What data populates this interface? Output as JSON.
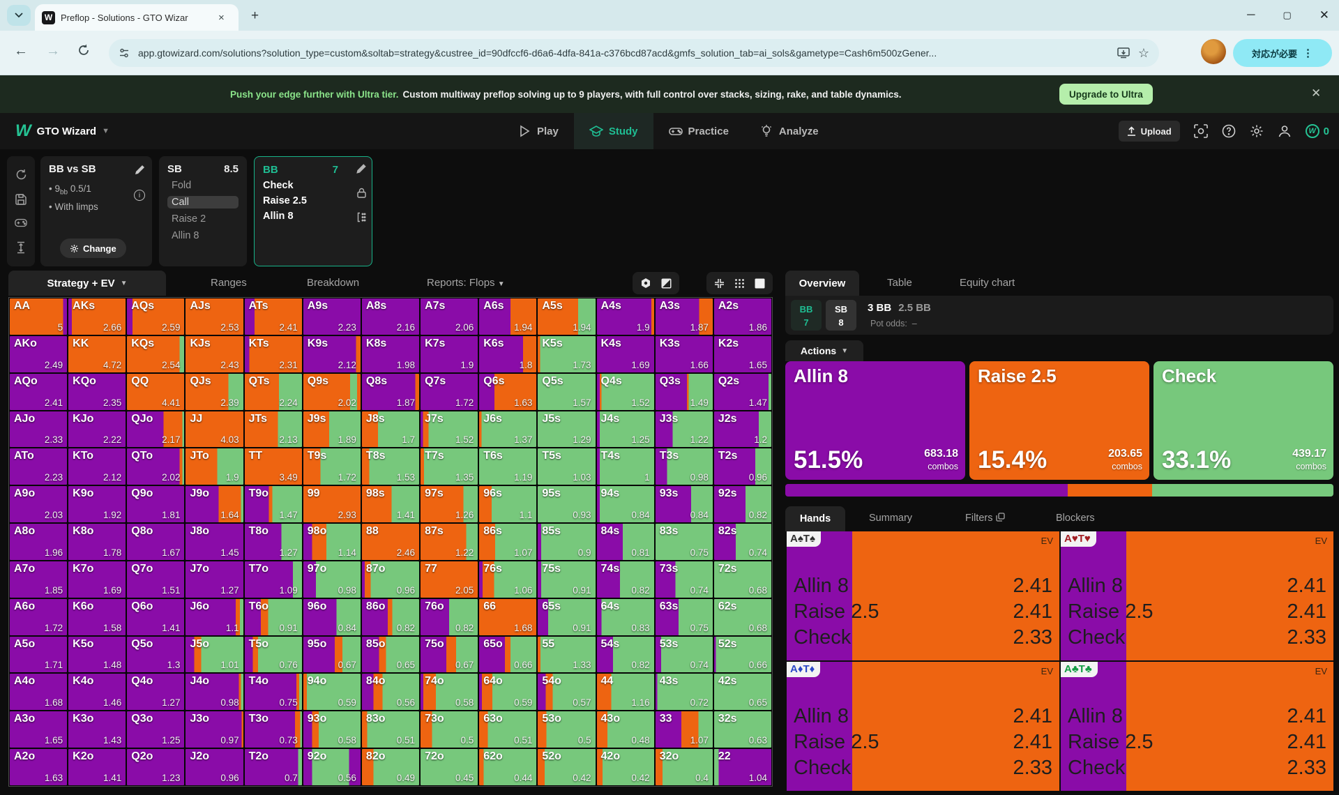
{
  "colors": {
    "p": "#8a0ca8",
    "o": "#ee6411",
    "g": "#77c87c",
    "teal": "#1fbe93"
  },
  "browser": {
    "tab_title": "Preflop - Solutions - GTO Wizar",
    "favicon_letter": "W",
    "url": "app.gtowizard.com/solutions?solution_type=custom&soltab=strategy&custree_id=90dfccf6-d6a6-4dfa-841a-c376bcd87acd&gmfs_solution_tab=ai_sols&gametype=Cash6m500zGener...",
    "alert_pill": "対応が必要"
  },
  "banner": {
    "highlight": "Push your edge further with Ultra tier.",
    "text": "Custom multiway preflop solving up to 9 players, with full control over stacks, sizing, rake, and table dynamics.",
    "button": "Upgrade to Ultra"
  },
  "navbar": {
    "logo_letter": "W",
    "brand": "GTO Wizard",
    "items": [
      "Play",
      "Study",
      "Practice",
      "Analyze"
    ],
    "upload": "Upload",
    "coins": "0"
  },
  "config": {
    "title": "BB vs SB",
    "bullet1_pre": "9",
    "bullet1_sub": "bb",
    "bullet1_post": " 0.5/1",
    "bullet2": "With limps",
    "change": "Change",
    "sb_panel": {
      "name": "SB",
      "stack": "8.5",
      "options": [
        "Fold",
        "Call",
        "Raise 2",
        "Allin 8"
      ],
      "selected": "Call"
    },
    "bb_panel": {
      "name": "BB",
      "stack": "7",
      "options": [
        "Check",
        "Raise 2.5",
        "Allin 8"
      ]
    }
  },
  "matrix_toolbar": {
    "tabs": [
      "Strategy + EV",
      "Ranges",
      "Breakdown",
      "Reports: Flops"
    ]
  },
  "right": {
    "tabs": [
      "Overview",
      "Table",
      "Equity chart"
    ],
    "players": [
      {
        "name": "BB",
        "stack": "7"
      },
      {
        "name": "SB",
        "stack": "8"
      }
    ],
    "pot": "3 BB",
    "bet": "2.5 BB",
    "pot_odds_label": "Pot odds:",
    "pot_odds": "–",
    "actions_label": "Actions",
    "combos_label": "combos",
    "actions": [
      {
        "name": "Allin 8",
        "pct": "51.5%",
        "combos": "683.18",
        "color": "p"
      },
      {
        "name": "Raise 2.5",
        "pct": "15.4%",
        "combos": "203.65",
        "color": "o"
      },
      {
        "name": "Check",
        "pct": "33.1%",
        "combos": "439.17",
        "color": "g"
      }
    ],
    "strategy_bar": [
      {
        "color": "p",
        "pct": 51.5
      },
      {
        "color": "o",
        "pct": 15.4
      },
      {
        "color": "g",
        "pct": 33.1
      }
    ],
    "hands_tabs": [
      "Hands",
      "Summary",
      "Filters",
      "Blockers"
    ],
    "ev_label": "EV",
    "hand_cards": [
      {
        "label": "A♠T♠",
        "suit_color": "#2f2f2f",
        "strip": 0.24,
        "rows": [
          [
            "Allin 8",
            "2.41"
          ],
          [
            "Raise 2.5",
            "2.41"
          ],
          [
            "Check",
            "2.33"
          ]
        ]
      },
      {
        "label": "A♥T♥",
        "suit_color": "#a21d22",
        "strip": 0.24,
        "rows": [
          [
            "Allin 8",
            "2.41"
          ],
          [
            "Raise 2.5",
            "2.41"
          ],
          [
            "Check",
            "2.33"
          ]
        ]
      },
      {
        "label": "A♦T♦",
        "suit_color": "#2b47c6",
        "strip": 0.24,
        "rows": [
          [
            "Allin 8",
            "2.41"
          ],
          [
            "Raise 2.5",
            "2.41"
          ],
          [
            "Check",
            "2.33"
          ]
        ]
      },
      {
        "label": "A♣T♣",
        "suit_color": "#129b43",
        "strip": 0.24,
        "rows": [
          [
            "Allin 8",
            "2.41"
          ],
          [
            "Raise 2.5",
            "2.41"
          ],
          [
            "Check",
            "2.33"
          ]
        ]
      }
    ]
  },
  "matrix": {
    "cells": [
      [
        "AA",
        "5",
        "o:.93,p:.07"
      ],
      [
        "AKs",
        "2.66",
        "p:.06,o:.94"
      ],
      [
        "AQs",
        "2.59",
        "p:.1,o:.9"
      ],
      [
        "AJs",
        "2.53",
        "o:1"
      ],
      [
        "ATs",
        "2.41",
        "p:.17,o:.83"
      ],
      [
        "A9s",
        "2.23",
        "p:1"
      ],
      [
        "A8s",
        "2.16",
        "p:1"
      ],
      [
        "A7s",
        "2.06",
        "p:1"
      ],
      [
        "A6s",
        "1.94",
        "p:.55,o:.45"
      ],
      [
        "A5s",
        "1.94",
        "o:.7,g:.3"
      ],
      [
        "A4s",
        "1.9",
        "p:.95,o:.05"
      ],
      [
        "A3s",
        "1.87",
        "p:.76,o:.24"
      ],
      [
        "A2s",
        "1.86",
        "p:1"
      ],
      [
        "AKo",
        "2.49",
        "p:1"
      ],
      [
        "KK",
        "4.72",
        "o:1"
      ],
      [
        "KQs",
        "2.54",
        "o:.92,g:.08"
      ],
      [
        "KJs",
        "2.43",
        "o:1"
      ],
      [
        "KTs",
        "2.31",
        "p:.08,o:.92"
      ],
      [
        "K9s",
        "2.12",
        "p:.92,o:.08"
      ],
      [
        "K8s",
        "1.98",
        "p:1"
      ],
      [
        "K7s",
        "1.9",
        "p:1"
      ],
      [
        "K6s",
        "1.8",
        "p:.77,o:.23"
      ],
      [
        "K5s",
        "1.73",
        "o:.04,g:.96"
      ],
      [
        "K4s",
        "1.69",
        "p:1"
      ],
      [
        "K3s",
        "1.66",
        "p:1"
      ],
      [
        "K2s",
        "1.65",
        "p:1"
      ],
      [
        "AQo",
        "2.41",
        "p:1"
      ],
      [
        "KQo",
        "2.35",
        "p:1"
      ],
      [
        "QQ",
        "4.41",
        "o:1"
      ],
      [
        "QJs",
        "2.39",
        "o:.74,g:.26"
      ],
      [
        "QTs",
        "2.24",
        "o:.6,g:.4"
      ],
      [
        "Q9s",
        "2.02",
        "o:.82,g:.12,o:.06"
      ],
      [
        "Q8s",
        "1.87",
        "p:.93,o:.07"
      ],
      [
        "Q7s",
        "1.72",
        "p:1"
      ],
      [
        "Q6s",
        "1.63",
        "p:.27,o:.73"
      ],
      [
        "Q5s",
        "1.57",
        "g:1"
      ],
      [
        "Q4s",
        "1.52",
        "p:.05,o:.03,g:.92"
      ],
      [
        "Q3s",
        "1.49",
        "p:.55,o:.03,g:.42"
      ],
      [
        "Q2s",
        "1.47",
        "p:.95,g:.05"
      ],
      [
        "AJo",
        "2.33",
        "p:1"
      ],
      [
        "KJo",
        "2.22",
        "p:1"
      ],
      [
        "QJo",
        "2.17",
        "p:.64,o:.33,g:.03"
      ],
      [
        "JJ",
        "4.03",
        "o:1"
      ],
      [
        "JTs",
        "2.13",
        "o:.58,g:.42"
      ],
      [
        "J9s",
        "1.89",
        "o:.45,g:.55"
      ],
      [
        "J8s",
        "1.7",
        "o:.28,g:.72"
      ],
      [
        "J7s",
        "1.52",
        "p:.04,o:.1,g:.86"
      ],
      [
        "J6s",
        "1.37",
        "o:.04,g:.96"
      ],
      [
        "J5s",
        "1.29",
        "g:1"
      ],
      [
        "J4s",
        "1.25",
        "p:.05,g:.95"
      ],
      [
        "J3s",
        "1.22",
        "p:.3,g:.7"
      ],
      [
        "J2s",
        "1.2",
        "p:.78,g:.22"
      ],
      [
        "ATo",
        "2.23",
        "p:1"
      ],
      [
        "KTo",
        "2.12",
        "p:1"
      ],
      [
        "QTo",
        "2.02",
        "p:.92,o:.05,g:.03"
      ],
      [
        "JTo",
        "1.9",
        "o:.55,g:.45"
      ],
      [
        "TT",
        "3.49",
        "o:1"
      ],
      [
        "T9s",
        "1.72",
        "o:.3,g:.7"
      ],
      [
        "T8s",
        "1.53",
        "o:.13,g:.87"
      ],
      [
        "T7s",
        "1.35",
        "o:.06,g:.94"
      ],
      [
        "T6s",
        "1.19",
        "g:1"
      ],
      [
        "T5s",
        "1.03",
        "g:1"
      ],
      [
        "T4s",
        "1",
        "p:.05,g:.95"
      ],
      [
        "T3s",
        "0.98",
        "p:.2,g:.8"
      ],
      [
        "T2s",
        "0.96",
        "p:.72,g:.28"
      ],
      [
        "A9o",
        "2.03",
        "p:1"
      ],
      [
        "K9o",
        "1.92",
        "p:1"
      ],
      [
        "Q9o",
        "1.81",
        "p:1"
      ],
      [
        "J9o",
        "1.64",
        "p:.57,o:.39,g:.04"
      ],
      [
        "T9o",
        "1.47",
        "p:.42,o:.06,g:.52"
      ],
      [
        "99",
        "2.93",
        "o:1"
      ],
      [
        "98s",
        "1.41",
        "o:.52,g:.48"
      ],
      [
        "97s",
        "1.26",
        "o:.75,g:.25"
      ],
      [
        "96s",
        "1.1",
        "o:.22,g:.78"
      ],
      [
        "95s",
        "0.93",
        "g:1"
      ],
      [
        "94s",
        "0.84",
        "p:.05,g:.95"
      ],
      [
        "93s",
        "0.84",
        "p:.62,g:.38"
      ],
      [
        "92s",
        "0.82",
        "p:.55,g:.45"
      ],
      [
        "A8o",
        "1.96",
        "p:1"
      ],
      [
        "K8o",
        "1.78",
        "p:1"
      ],
      [
        "Q8o",
        "1.67",
        "p:1"
      ],
      [
        "J8o",
        "1.45",
        "p:1"
      ],
      [
        "T8o",
        "1.27",
        "p:.64,g:.36"
      ],
      [
        "98o",
        "1.14",
        "p:.15,o:.25,g:.6"
      ],
      [
        "88",
        "2.46",
        "o:1"
      ],
      [
        "87s",
        "1.22",
        "o:.8,g:.2"
      ],
      [
        "86s",
        "1.07",
        "o:.28,g:.72"
      ],
      [
        "85s",
        "0.9",
        "p:.06,g:.94"
      ],
      [
        "84s",
        "0.81",
        "p:.45,g:.55"
      ],
      [
        "83s",
        "0.75",
        "g:1"
      ],
      [
        "82s",
        "0.74",
        "p:.38,g:.62"
      ],
      [
        "A7o",
        "1.85",
        "p:1"
      ],
      [
        "K7o",
        "1.69",
        "p:1"
      ],
      [
        "Q7o",
        "1.51",
        "p:1"
      ],
      [
        "J7o",
        "1.27",
        "p:1"
      ],
      [
        "T7o",
        "1.09",
        "p:.84,g:.16"
      ],
      [
        "97o",
        "0.98",
        "p:.22,g:.78"
      ],
      [
        "87o",
        "0.96",
        "p:.05,o:.1,g:.85"
      ],
      [
        "77",
        "2.05",
        "o:1"
      ],
      [
        "76s",
        "1.06",
        "p:.06,o:.2,g:.74"
      ],
      [
        "75s",
        "0.91",
        "p:.06,g:.94"
      ],
      [
        "74s",
        "0.82",
        "p:.4,g:.6"
      ],
      [
        "73s",
        "0.74",
        "p:.35,g:.65"
      ],
      [
        "72s",
        "0.68",
        "g:1"
      ],
      [
        "A6o",
        "1.72",
        "p:1"
      ],
      [
        "K6o",
        "1.58",
        "p:1"
      ],
      [
        "Q6o",
        "1.41",
        "p:1"
      ],
      [
        "J6o",
        "1.1",
        "p:.87,o:.07,g:.06"
      ],
      [
        "T6o",
        "0.91",
        "p:.28,o:.13,g:.59"
      ],
      [
        "96o",
        "0.84",
        "p:.58,g:.42"
      ],
      [
        "86o",
        "0.82",
        "p:.45,o:.08,g:.47"
      ],
      [
        "76o",
        "0.82",
        "p:.5,g:.5"
      ],
      [
        "66",
        "1.68",
        "o:1"
      ],
      [
        "65s",
        "0.91",
        "p:.18,g:.82"
      ],
      [
        "64s",
        "0.83",
        "p:.08,g:.92"
      ],
      [
        "63s",
        "0.75",
        "p:.4,g:.6"
      ],
      [
        "62s",
        "0.68",
        "g:1"
      ],
      [
        "A5o",
        "1.71",
        "p:1"
      ],
      [
        "K5o",
        "1.48",
        "p:1"
      ],
      [
        "Q5o",
        "1.3",
        "p:1"
      ],
      [
        "J5o",
        "1.01",
        "p:.15,o:.12,g:.73"
      ],
      [
        "T5o",
        "0.76",
        "p:.14,o:.09,g:.77"
      ],
      [
        "95o",
        "0.67",
        "p:.55,o:.13,g:.32"
      ],
      [
        "85o",
        "0.65",
        "p:.3,o:.12,g:.58"
      ],
      [
        "75o",
        "0.67",
        "p:.45,o:.17,g:.38"
      ],
      [
        "65o",
        "0.66",
        "p:.45,o:.1,g:.45"
      ],
      [
        "55",
        "1.33",
        "o:.05,g:.95"
      ],
      [
        "54s",
        "0.82",
        "p:.28,g:.72"
      ],
      [
        "53s",
        "0.74",
        "p:.1,g:.9"
      ],
      [
        "52s",
        "0.66",
        "p:.03,g:.97"
      ],
      [
        "A4o",
        "1.68",
        "p:1"
      ],
      [
        "K4o",
        "1.46",
        "p:1"
      ],
      [
        "Q4o",
        "1.27",
        "p:1"
      ],
      [
        "J4o",
        "0.98",
        "p:.92,o:.04,g:.04"
      ],
      [
        "T4o",
        "0.75",
        "p:.9,o:.05,g:.05"
      ],
      [
        "94o",
        "0.59",
        "o:.06,g:.94"
      ],
      [
        "84o",
        "0.56",
        "p:.2,o:.16,g:.64"
      ],
      [
        "74o",
        "0.58",
        "p:.05,o:.22,g:.73"
      ],
      [
        "64o",
        "0.59",
        "p:.05,o:.18,g:.77"
      ],
      [
        "54o",
        "0.57",
        "p:.14,o:.12,g:.74"
      ],
      [
        "44",
        "1.16",
        "o:.25,g:.75"
      ],
      [
        "43s",
        "0.72",
        "p:.03,g:.97"
      ],
      [
        "42s",
        "0.65",
        "g:1"
      ],
      [
        "A3o",
        "1.65",
        "p:1"
      ],
      [
        "K3o",
        "1.43",
        "p:1"
      ],
      [
        "Q3o",
        "1.25",
        "p:1"
      ],
      [
        "J3o",
        "0.97",
        "p:.97,o:.03"
      ],
      [
        "T3o",
        "0.73",
        "p:.88,o:.09,g:.03"
      ],
      [
        "93o",
        "0.58",
        "p:.15,o:.12,g:.73"
      ],
      [
        "83o",
        "0.51",
        "o:.09,g:.91"
      ],
      [
        "73o",
        "0.5",
        "o:.2,g:.8"
      ],
      [
        "63o",
        "0.51",
        "o:.15,g:.85"
      ],
      [
        "53o",
        "0.5",
        "o:.15,g:.85"
      ],
      [
        "43o",
        "0.48",
        "o:.18,g:.82"
      ],
      [
        "33",
        "1.07",
        "p:.45,o:.3,g:.25"
      ],
      [
        "32s",
        "0.63",
        "g:1"
      ],
      [
        "A2o",
        "1.63",
        "p:1"
      ],
      [
        "K2o",
        "1.41",
        "p:1"
      ],
      [
        "Q2o",
        "1.23",
        "p:1"
      ],
      [
        "J2o",
        "0.96",
        "p:1"
      ],
      [
        "T2o",
        "0.7",
        "p:.93,g:.07"
      ],
      [
        "92o",
        "0.56",
        "p:.15,g:.65,p:.2"
      ],
      [
        "82o",
        "0.49",
        "o:.2,g:.8"
      ],
      [
        "72o",
        "0.45",
        "g:1"
      ],
      [
        "62o",
        "0.44",
        "o:.08,g:.92"
      ],
      [
        "52o",
        "0.42",
        "o:.12,g:.88"
      ],
      [
        "42o",
        "0.42",
        "o:.1,g:.9"
      ],
      [
        "32o",
        "0.4",
        "o:.12,g:.88"
      ],
      [
        "22",
        "1.04",
        "g:.08,p:.92"
      ]
    ]
  }
}
